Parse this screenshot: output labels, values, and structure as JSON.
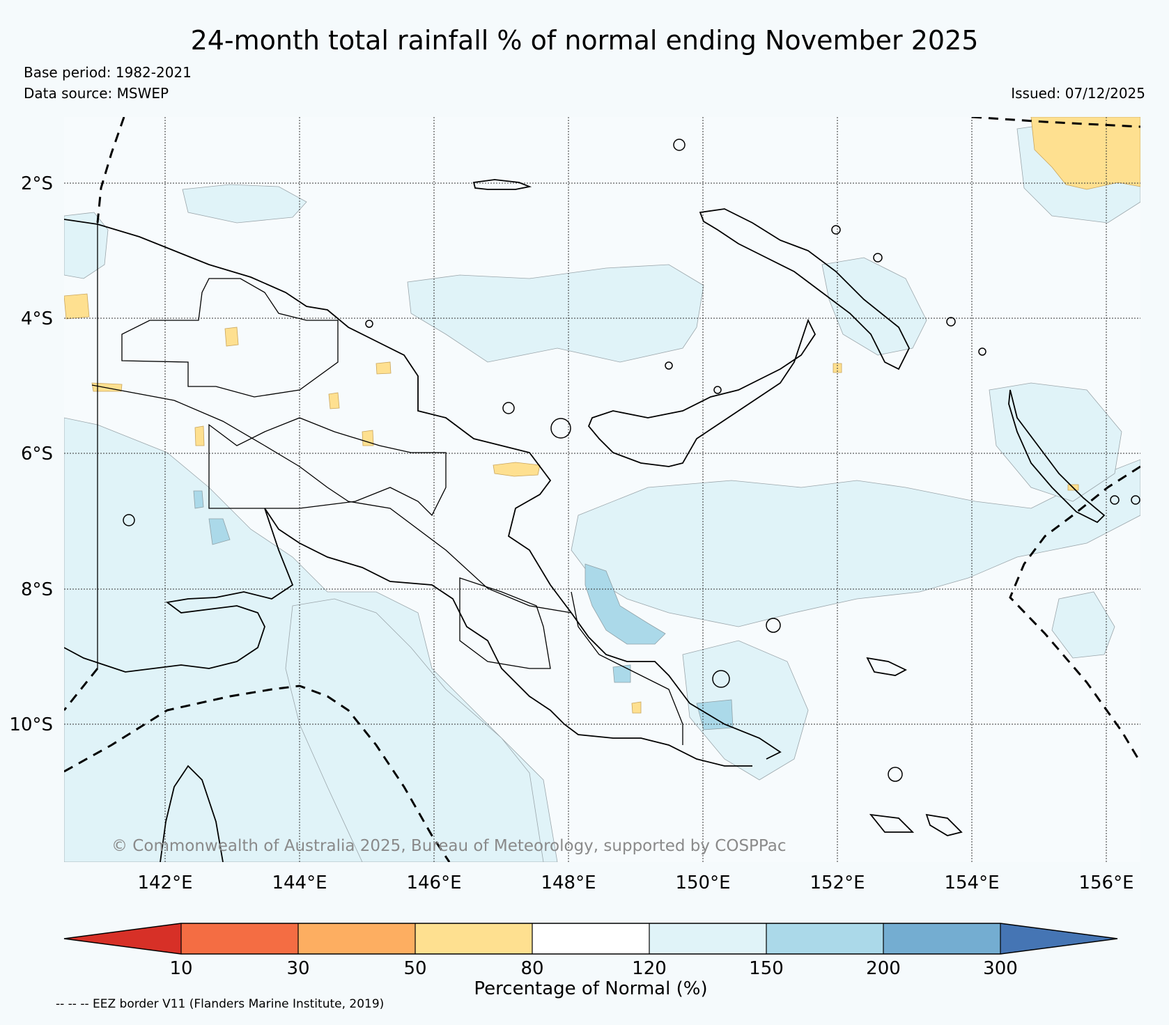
{
  "title": "24-month total rainfall % of normal ending November 2025",
  "base_period": "Base period: 1982-2021",
  "data_source": "Data source: MSWEP",
  "issued": "Issued: 07/12/2025",
  "copyright": "© Commonwealth of Australia 2025, Bureau of Meteorology, supported by COSPPac",
  "footnote": "-- -- -- EEZ border V11 (Flanders Marine Institute, 2019)",
  "axes": {
    "lon_ticks": [
      "142°E",
      "144°E",
      "146°E",
      "148°E",
      "150°E",
      "152°E",
      "154°E",
      "156°E"
    ],
    "lat_ticks": [
      "2°S",
      "4°S",
      "6°S",
      "8°S",
      "10°S"
    ]
  },
  "colorbar": {
    "label": "Percentage of Normal (%)",
    "ticks": [
      "10",
      "30",
      "50",
      "80",
      "120",
      "150",
      "200",
      "300"
    ],
    "colors": {
      "below_10": "#d73027",
      "10_30": "#f46d43",
      "30_50": "#fdae61",
      "50_80": "#fee090",
      "80_120": "#ffffff",
      "120_150": "#e0f3f8",
      "150_200": "#abd9e9",
      "200_300": "#74add1",
      "above_300": "#4575b4"
    }
  }
}
